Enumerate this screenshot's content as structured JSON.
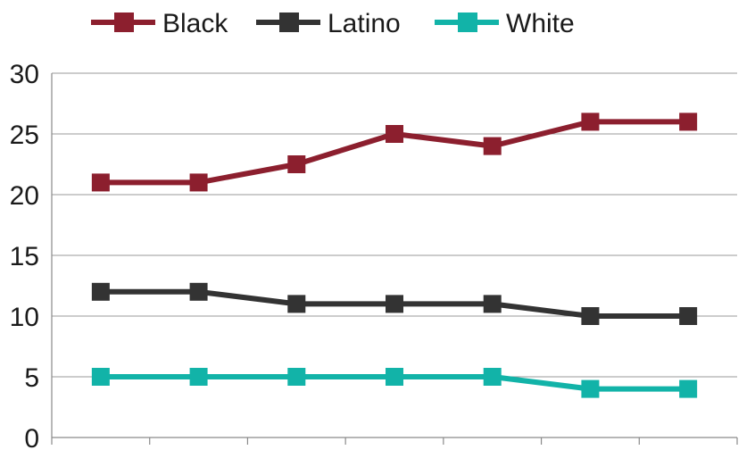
{
  "chart_data": {
    "type": "line",
    "categories": [
      "",
      "",
      "",
      "",
      "",
      "",
      ""
    ],
    "series": [
      {
        "name": "Black",
        "color": "#8c1f2e",
        "values": [
          21,
          21,
          22.5,
          25,
          24,
          26,
          26
        ]
      },
      {
        "name": "Latino",
        "color": "#333333",
        "values": [
          12,
          12,
          11,
          11,
          11,
          10,
          10
        ]
      },
      {
        "name": "White",
        "color": "#12b3a8",
        "values": [
          5,
          5,
          5,
          5,
          5,
          4,
          4
        ]
      }
    ],
    "ylim": [
      0,
      30
    ],
    "yticks": [
      0,
      5,
      10,
      15,
      20,
      25,
      30
    ],
    "grid": true,
    "legend_position": "top-center",
    "title": "",
    "xlabel": "",
    "ylabel": ""
  }
}
